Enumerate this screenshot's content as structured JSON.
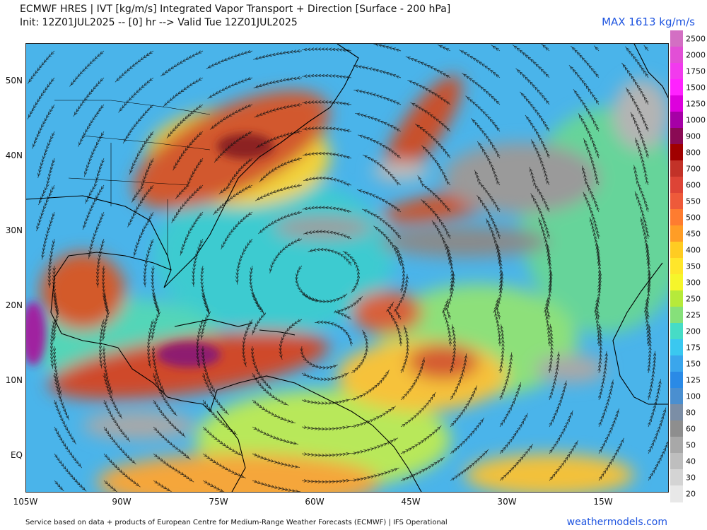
{
  "header": {
    "title_line1": "ECMWF HRES | IVT [kg/m/s] Integrated Vapor Transport + Direction [Surface - 200 hPa]",
    "title_line2": "Init: 12Z01JUL2025 -- [0] hr --> Valid Tue 12Z01JUL2025",
    "max_label": "MAX 1613 kg/m/s"
  },
  "map": {
    "lat_labels": [
      "50N",
      "40N",
      "30N",
      "20N",
      "10N",
      "EQ"
    ],
    "lon_labels": [
      "105W",
      "90W",
      "75W",
      "60W",
      "45W",
      "30W",
      "15W"
    ],
    "lon_range": [
      -105,
      -5
    ],
    "lat_range": [
      -5,
      55
    ],
    "background_color": "#4ab4ea",
    "features": [
      {
        "type": "ivt-band",
        "name": "us-northeast-plume",
        "color": "#d2592e"
      },
      {
        "type": "ivt-band",
        "name": "north-atlantic-plume",
        "color": "#c9502a"
      },
      {
        "type": "ivt-band",
        "name": "caribbean-plume",
        "color": "#cf4a2b"
      },
      {
        "type": "ivt-band",
        "name": "gulf-of-mexico-plume",
        "color": "#d35a2c"
      },
      {
        "type": "ivt-core",
        "name": "panama-core",
        "color": "#8e1a70"
      },
      {
        "type": "ivt-core",
        "name": "pacific-core",
        "color": "#a020a0"
      },
      {
        "type": "dry-area",
        "name": "subtropical-dry-zone",
        "color": "#9a9a9a"
      }
    ]
  },
  "legend": {
    "labels": [
      "2500",
      "2000",
      "1750",
      "1500",
      "1250",
      "1000",
      "900",
      "800",
      "700",
      "600",
      "550",
      "500",
      "450",
      "400",
      "350",
      "300",
      "250",
      "225",
      "200",
      "175",
      "150",
      "125",
      "100",
      "80",
      "60",
      "50",
      "40",
      "30",
      "20"
    ],
    "colors": [
      "#d36fc3",
      "#e24fd6",
      "#f23aee",
      "#ff22ff",
      "#dd00dd",
      "#a600a6",
      "#8a0a54",
      "#a00000",
      "#c23228",
      "#dd4436",
      "#ee5a3a",
      "#fe7c30",
      "#ff9d26",
      "#ffcc22",
      "#ffe62a",
      "#f6f62a",
      "#b6ea3a",
      "#86e07a",
      "#46dcc6",
      "#3ac8f0",
      "#3aa6ec",
      "#2a8ae6",
      "#4a8fd0",
      "#7b8ea6",
      "#8e8e8e",
      "#a8a8a8",
      "#bebebe",
      "#d4d4d4",
      "#e8e8e8"
    ]
  },
  "footer": {
    "credit": "Service based on data + products of European Centre for Medium-Range Weather Forecasts (ECMWF) | IFS Operational",
    "brand": "weathermodels.com"
  }
}
